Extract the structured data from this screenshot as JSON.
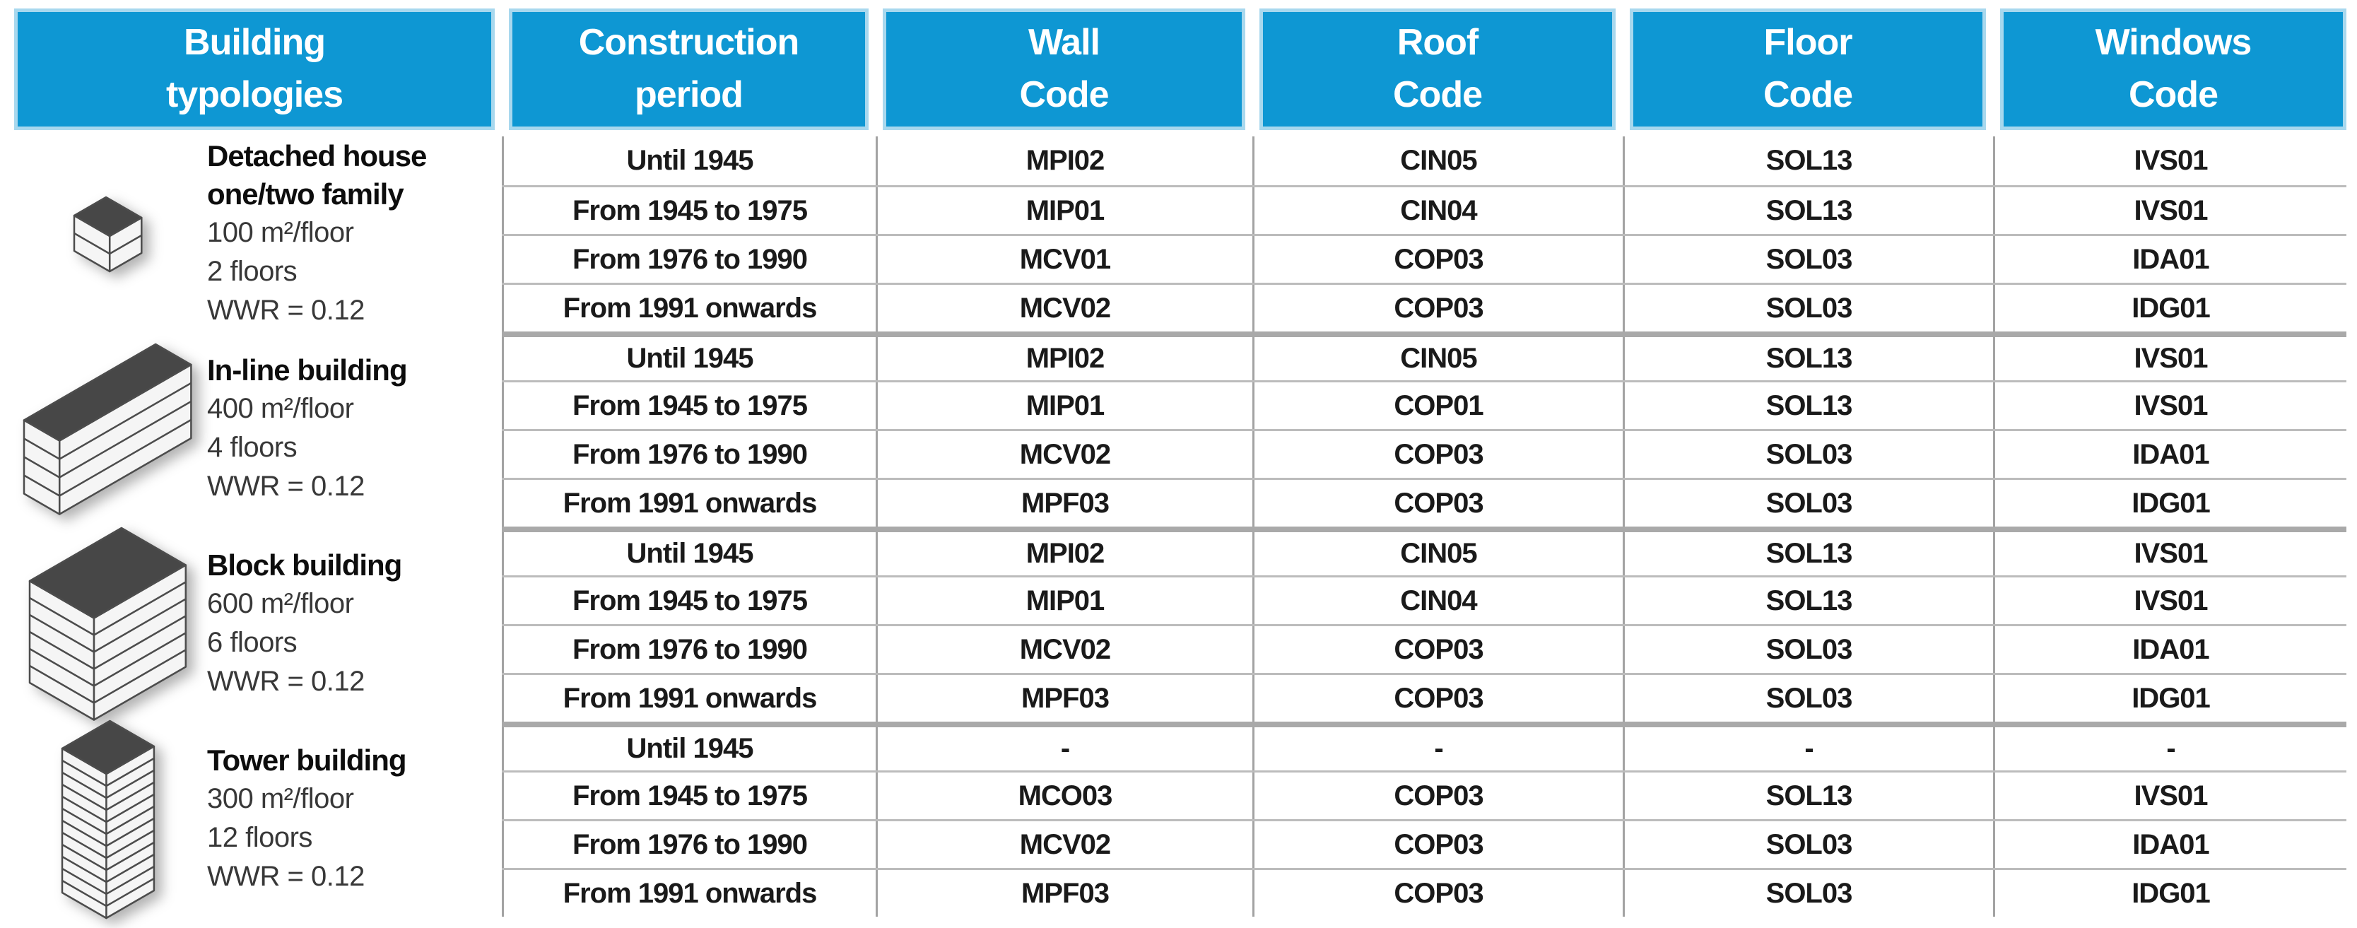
{
  "colors": {
    "header_bg": "#0e97d3",
    "header_border": "#a8d8ee",
    "row_separator": "#bcbcbc",
    "group_separator": "#a9a9a9",
    "column_line": "#a3a3a3",
    "icon_roof": "#474747",
    "icon_face": "#f5f5f5"
  },
  "columns": [
    "Building\ntypologies",
    "Construction\nperiod",
    "Wall\nCode",
    "Roof\nCode",
    "Floor\nCode",
    "Windows\nCode"
  ],
  "typologies": [
    {
      "name": "Detached house\none/two family",
      "area": "100 m²/floor",
      "floors_label": "2 floors",
      "wwr": "WWR = 0.12",
      "icon_name": "detached-house-icon",
      "icon": {
        "w": 58,
        "d": 52,
        "fh": 25,
        "floors": 2
      }
    },
    {
      "name": "In-line building",
      "area": "400 m²/floor",
      "floors_label": "4 floors",
      "wwr": "WWR = 0.12",
      "icon_name": "in-line-building-icon",
      "icon": {
        "w": 58,
        "d": 215,
        "fh": 26,
        "floors": 4
      }
    },
    {
      "name": "Block building",
      "area": "600 m²/floor",
      "floors_label": "6 floors",
      "wwr": "WWR = 0.12",
      "icon_name": "block-building-icon",
      "icon": {
        "w": 105,
        "d": 150,
        "fh": 24,
        "floors": 6
      }
    },
    {
      "name": "Tower building",
      "area": "300 m²/floor",
      "floors_label": "12 floors",
      "wwr": "WWR = 0.12",
      "icon_name": "tower-building-icon",
      "icon": {
        "w": 72,
        "d": 78,
        "fh": 17,
        "floors": 12
      }
    }
  ],
  "rows": [
    {
      "period": "Until 1945",
      "wall": "MPI02",
      "roof": "CIN05",
      "floor": "SOL13",
      "windows": "IVS01",
      "group_start": false
    },
    {
      "period": "From 1945 to 1975",
      "wall": "MIP01",
      "roof": "CIN04",
      "floor": "SOL13",
      "windows": "IVS01",
      "group_start": false
    },
    {
      "period": "From 1976 to 1990",
      "wall": "MCV01",
      "roof": "COP03",
      "floor": "SOL03",
      "windows": "IDA01",
      "group_start": false
    },
    {
      "period": "From 1991 onwards",
      "wall": "MCV02",
      "roof": "COP03",
      "floor": "SOL03",
      "windows": "IDG01",
      "group_start": false
    },
    {
      "period": "Until 1945",
      "wall": "MPI02",
      "roof": "CIN05",
      "floor": "SOL13",
      "windows": "IVS01",
      "group_start": true
    },
    {
      "period": "From 1945 to 1975",
      "wall": "MIP01",
      "roof": "COP01",
      "floor": "SOL13",
      "windows": "IVS01",
      "group_start": false
    },
    {
      "period": "From 1976 to 1990",
      "wall": "MCV02",
      "roof": "COP03",
      "floor": "SOL03",
      "windows": "IDA01",
      "group_start": false
    },
    {
      "period": "From 1991 onwards",
      "wall": "MPF03",
      "roof": "COP03",
      "floor": "SOL03",
      "windows": "IDG01",
      "group_start": false
    },
    {
      "period": "Until 1945",
      "wall": "MPI02",
      "roof": "CIN05",
      "floor": "SOL13",
      "windows": "IVS01",
      "group_start": true
    },
    {
      "period": "From 1945 to 1975",
      "wall": "MIP01",
      "roof": "CIN04",
      "floor": "SOL13",
      "windows": "IVS01",
      "group_start": false
    },
    {
      "period": "From 1976 to 1990",
      "wall": "MCV02",
      "roof": "COP03",
      "floor": "SOL03",
      "windows": "IDA01",
      "group_start": false
    },
    {
      "period": "From 1991 onwards",
      "wall": "MPF03",
      "roof": "COP03",
      "floor": "SOL03",
      "windows": "IDG01",
      "group_start": false
    },
    {
      "period": "Until 1945",
      "wall": "-",
      "roof": "-",
      "floor": "-",
      "windows": "-",
      "group_start": true
    },
    {
      "period": "From 1945 to 1975",
      "wall": "MCO03",
      "roof": "COP03",
      "floor": "SOL13",
      "windows": "IVS01",
      "group_start": false
    },
    {
      "period": "From 1976 to 1990",
      "wall": "MCV02",
      "roof": "COP03",
      "floor": "SOL03",
      "windows": "IDA01",
      "group_start": false
    },
    {
      "period": "From 1991 onwards",
      "wall": "MPF03",
      "roof": "COP03",
      "floor": "SOL03",
      "windows": "IDG01",
      "group_start": false
    }
  ]
}
